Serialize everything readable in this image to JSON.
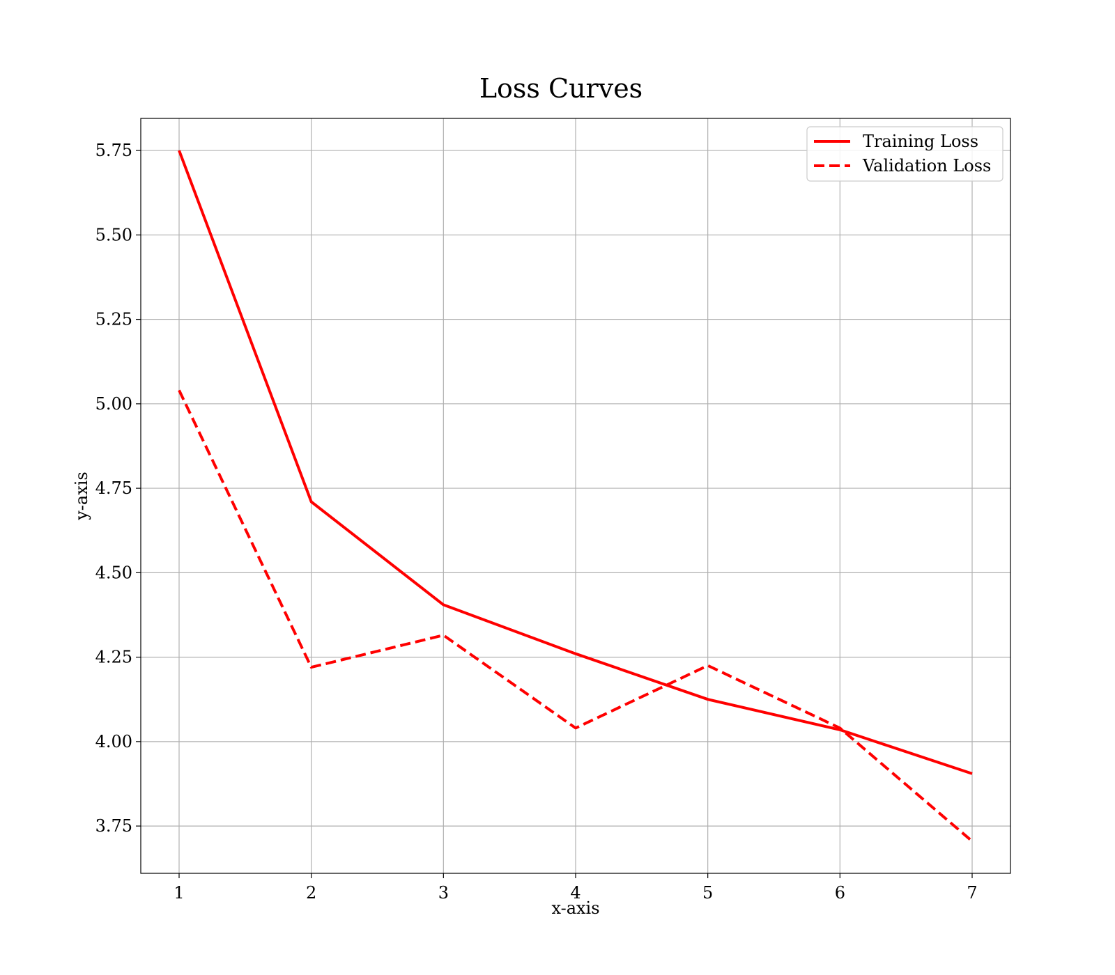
{
  "chart_data": {
    "type": "line",
    "title": "Loss Curves",
    "xlabel": "x-axis",
    "ylabel": "y-axis",
    "x": [
      1,
      2,
      3,
      4,
      5,
      6,
      7
    ],
    "xlim": [
      0.71,
      7.29
    ],
    "ylim": [
      3.61,
      5.845
    ],
    "xticks": [
      1,
      2,
      3,
      4,
      5,
      6,
      7
    ],
    "yticks": [
      3.75,
      4.0,
      4.25,
      4.5,
      4.75,
      5.0,
      5.25,
      5.5,
      5.75
    ],
    "grid": true,
    "legend_position": "top-right",
    "series": [
      {
        "name": "Training Loss",
        "values": [
          5.75,
          4.71,
          4.405,
          4.26,
          4.125,
          4.035,
          3.905
        ],
        "color": "#ff0000",
        "style": "solid"
      },
      {
        "name": "Validation Loss",
        "values": [
          5.04,
          4.22,
          4.315,
          4.04,
          4.225,
          4.04,
          3.705
        ],
        "color": "#ff0000",
        "style": "dashed"
      }
    ]
  }
}
